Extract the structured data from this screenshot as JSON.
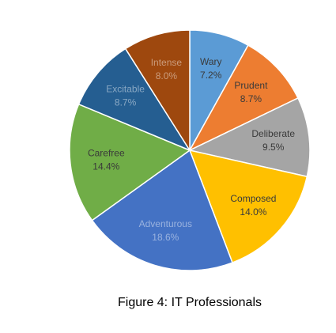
{
  "chart_data": {
    "type": "pie",
    "title": "Figure 4: IT Professionals",
    "categories": [
      "Wary",
      "Prudent",
      "Deliberate",
      "Composed",
      "Adventurous",
      "Carefree",
      "Excitable",
      "Intense"
    ],
    "values": [
      7.2,
      8.7,
      9.5,
      14.0,
      18.6,
      14.4,
      8.7,
      8.0
    ],
    "value_labels": [
      "7.2%",
      "8.7%",
      "9.5%",
      "14.0%",
      "18.6%",
      "14.4%",
      "8.7%",
      "8.0%"
    ],
    "colors": [
      "#5b9bd5",
      "#ed7d31",
      "#a5a5a5",
      "#ffc000",
      "#4472c4",
      "#70ad47",
      "#255e91",
      "#9e480e"
    ]
  }
}
